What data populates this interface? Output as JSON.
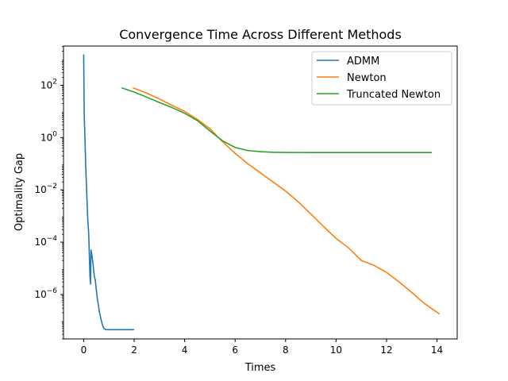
{
  "chart_data": {
    "type": "line",
    "title": "Convergence Time Across Different Methods",
    "xlabel": "Times",
    "ylabel": "Optimality Gap",
    "xlim": [
      -0.8,
      14.8
    ],
    "ylim_log10": [
      -7.7,
      3.5
    ],
    "y_scale": "log",
    "grid": false,
    "legend_position": "top-right",
    "x_ticks": [
      0,
      2,
      4,
      6,
      8,
      10,
      12,
      14
    ],
    "x_tick_labels": [
      "0",
      "2",
      "4",
      "6",
      "8",
      "10",
      "12",
      "14"
    ],
    "y_ticks_log10": [
      2,
      0,
      -2,
      -4,
      -6
    ],
    "y_tick_bases": [
      "10",
      "10",
      "10",
      "10",
      "10"
    ],
    "y_tick_exponents": [
      "2",
      "0",
      "−2",
      "−4",
      "−6"
    ],
    "series": [
      {
        "name": "ADMM",
        "color": "#1f77b4",
        "x": [
          0.0,
          0.02,
          0.05,
          0.08,
          0.12,
          0.16,
          0.2,
          0.23,
          0.25,
          0.27,
          0.29,
          0.31,
          0.34,
          0.38,
          0.42,
          0.46,
          0.5,
          0.54,
          0.58,
          0.63,
          0.68,
          0.74,
          0.8,
          0.86,
          0.92,
          1.0,
          1.2,
          1.5,
          2.0
        ],
        "y": [
          1500,
          8,
          1.0,
          0.08,
          0.008,
          0.0008,
          0.0002,
          2e-05,
          5e-06,
          2.5e-06,
          5e-05,
          4e-05,
          2.5e-05,
          1.2e-05,
          5e-06,
          3.5e-06,
          1.5e-06,
          7e-07,
          4e-07,
          2e-07,
          1.2e-07,
          7e-08,
          5e-08,
          4.6e-08,
          4.5e-08,
          4.5e-08,
          4.5e-08,
          4.5e-08,
          4.5e-08
        ]
      },
      {
        "name": "Newton",
        "color": "#ff7f0e",
        "x": [
          1.95,
          2.5,
          3.0,
          3.5,
          4.0,
          4.5,
          5.0,
          5.5,
          6.0,
          6.5,
          7.0,
          7.5,
          8.0,
          8.5,
          9.0,
          9.5,
          10.0,
          10.5,
          11.0,
          11.5,
          12.0,
          12.5,
          13.0,
          13.5,
          14.1
        ],
        "y": [
          80,
          50,
          30,
          17,
          10,
          5,
          2.2,
          0.7,
          0.25,
          0.1,
          0.045,
          0.02,
          0.009,
          0.0035,
          0.0012,
          0.0004,
          0.00014,
          6e-05,
          2e-05,
          1.3e-05,
          7e-06,
          3e-06,
          1.2e-06,
          4.5e-07,
          1.8e-07
        ]
      },
      {
        "name": "Truncated Newton",
        "color": "#2ca02c",
        "x": [
          1.5,
          2.0,
          2.5,
          3.0,
          3.5,
          4.0,
          4.5,
          5.0,
          5.5,
          6.0,
          6.5,
          7.0,
          7.5,
          8.0,
          9.0,
          10.0,
          11.0,
          12.0,
          13.0,
          13.8
        ],
        "y": [
          80,
          55,
          35,
          22,
          14,
          8.5,
          4.5,
          1.8,
          0.75,
          0.42,
          0.32,
          0.29,
          0.275,
          0.27,
          0.268,
          0.268,
          0.268,
          0.268,
          0.268,
          0.268
        ]
      }
    ]
  }
}
